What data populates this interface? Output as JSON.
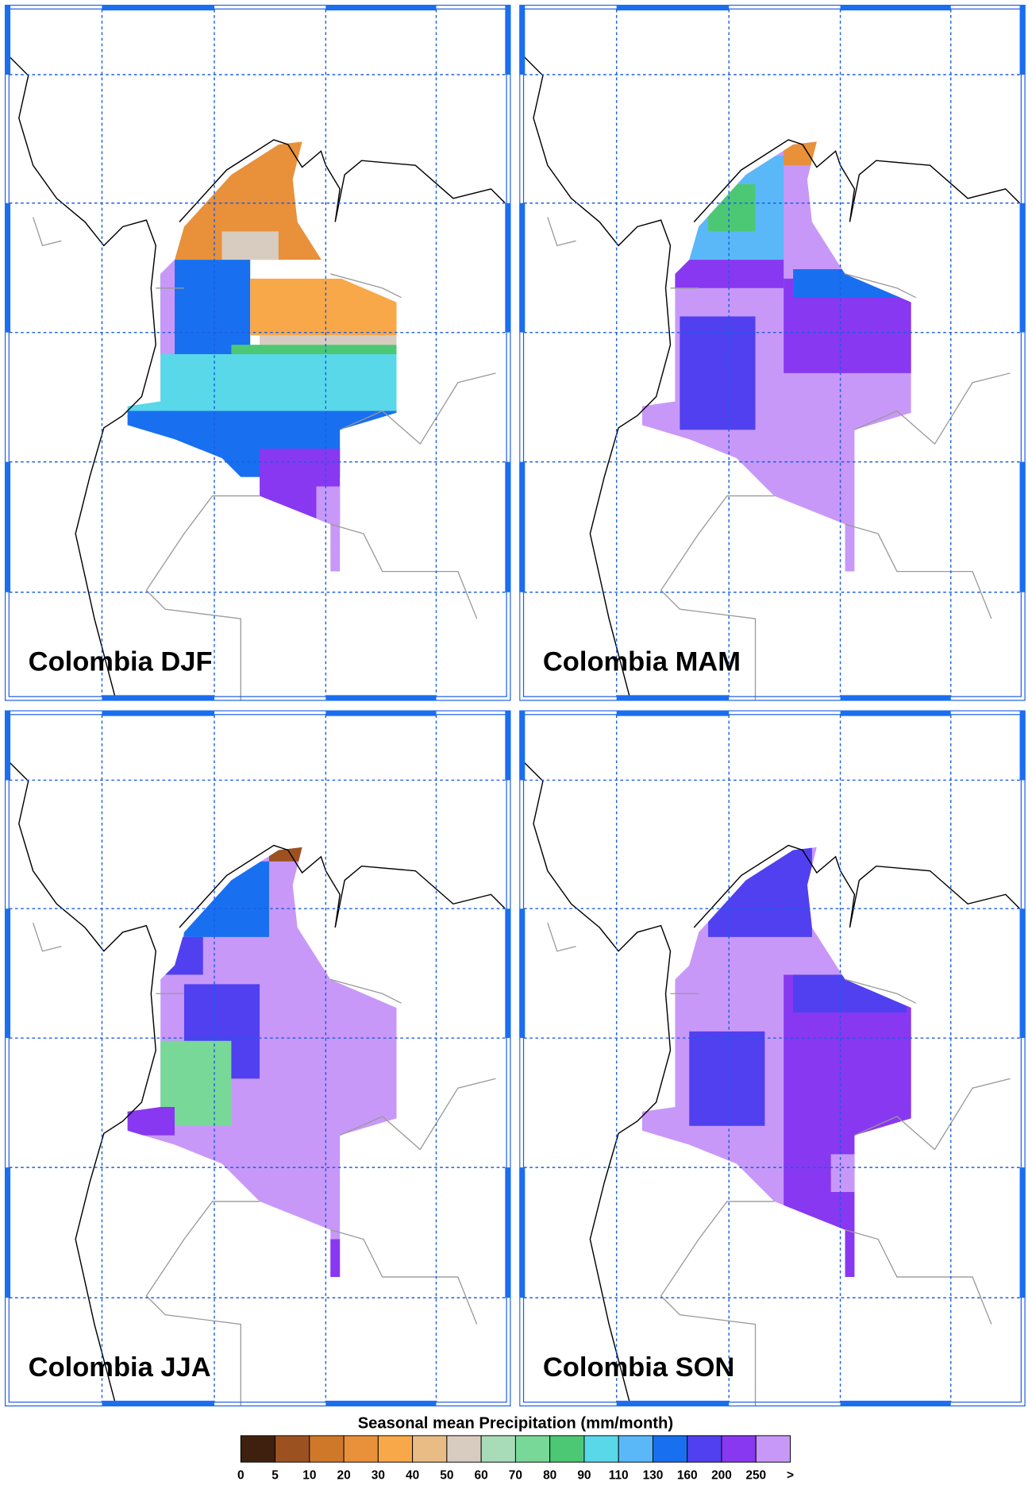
{
  "panels": [
    {
      "title": "Colombia DJF"
    },
    {
      "title": "Colombia MAM"
    },
    {
      "title": "Colombia JJA"
    },
    {
      "title": "Colombia SON"
    }
  ],
  "colorbar": {
    "title": "Seasonal mean Precipitation (mm/month)",
    "levels": [
      0,
      5,
      10,
      20,
      30,
      40,
      50,
      60,
      70,
      80,
      90,
      110,
      130,
      160,
      200,
      250,
      ">"
    ],
    "colors": [
      "#3f1f0e",
      "#9c5220",
      "#d0782a",
      "#e8903a",
      "#f8a848",
      "#e8bc84",
      "#d8ccc0",
      "#a8dcb8",
      "#78d898",
      "#4cc874",
      "#58d8e8",
      "#5ab8f8",
      "#1870f0",
      "#5040f0",
      "#8838f0",
      "#c898f8"
    ]
  }
}
